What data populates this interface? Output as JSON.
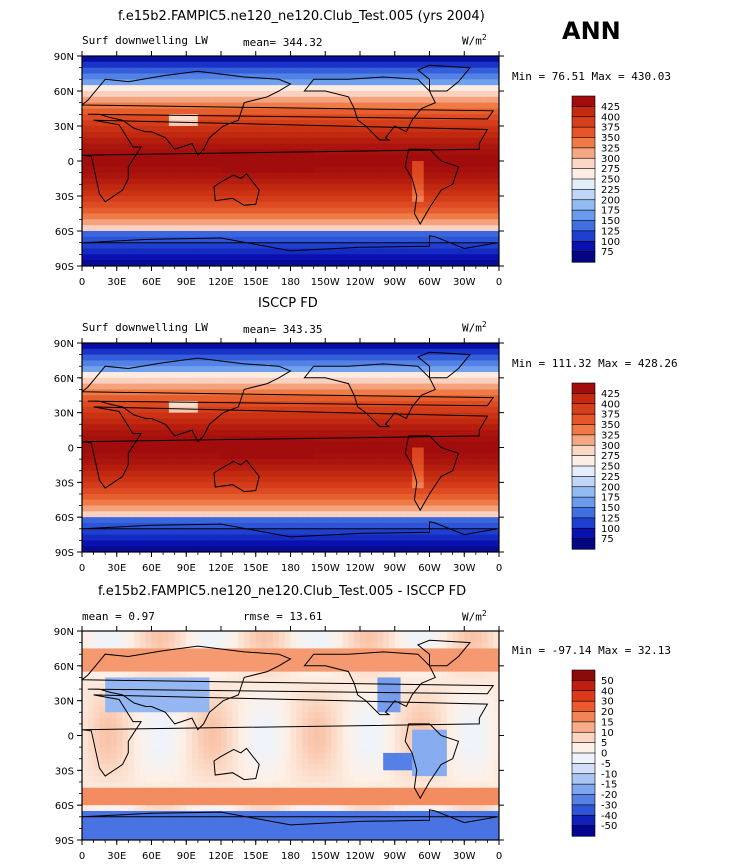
{
  "season": "ANN",
  "axes": {
    "lat_labels": [
      "90N",
      "60N",
      "30N",
      "0",
      "30S",
      "60S",
      "90S"
    ],
    "lon_labels": [
      "0",
      "30E",
      "60E",
      "90E",
      "120E",
      "150E",
      "180",
      "150W",
      "120W",
      "90W",
      "60W",
      "30W",
      "0"
    ]
  },
  "chart_data": [
    {
      "type": "heatmap",
      "title": "f.e15b2.FAMPIC5.ne120_ne120.Club_Test.005 (yrs 2004)",
      "left_label": "Surf downwelling LW",
      "center_label": "mean= 344.32",
      "units": "W/m2",
      "min_max": "Min =  76.51 Max = 430.03",
      "levels": [
        "425",
        "400",
        "375",
        "350",
        "325",
        "300",
        "275",
        "250",
        "225",
        "200",
        "175",
        "150",
        "125",
        "100",
        "75"
      ],
      "colors": [
        "#a10d0d",
        "#c42a10",
        "#d63f1c",
        "#e55527",
        "#ef7a45",
        "#f5a783",
        "#fbd7c6",
        "#fdeee4",
        "#e4eefb",
        "#c0d6f7",
        "#94baf2",
        "#6a9aec",
        "#3f6fe0",
        "#1f3fd0",
        "#0a10b0",
        "#040580"
      ]
    },
    {
      "type": "heatmap",
      "title": "ISCCP FD",
      "left_label": "Surf downwelling LW",
      "center_label": "mean= 343.35",
      "units": "W/m2",
      "min_max": "Min = 111.32 Max = 428.26",
      "levels": [
        "425",
        "400",
        "375",
        "350",
        "325",
        "300",
        "275",
        "250",
        "225",
        "200",
        "175",
        "150",
        "125",
        "100",
        "75"
      ],
      "colors": [
        "#a10d0d",
        "#c42a10",
        "#d63f1c",
        "#e55527",
        "#ef7a45",
        "#f5a783",
        "#fbd7c6",
        "#fdeee4",
        "#e4eefb",
        "#c0d6f7",
        "#94baf2",
        "#6a9aec",
        "#3f6fe0",
        "#1f3fd0",
        "#0a10b0",
        "#040580"
      ]
    },
    {
      "type": "heatmap",
      "title": "f.e15b2.FAMPIC5.ne120_ne120.Club_Test.005 - ISCCP FD",
      "left_label": "mean =   0.97",
      "center_label": "rmse =  13.61",
      "units": "W/m2",
      "min_max": "Min = -97.14 Max =  32.13",
      "levels": [
        "50",
        "40",
        "30",
        "20",
        "15",
        "10",
        "5",
        "0",
        "-5",
        "-10",
        "-15",
        "-20",
        "-30",
        "-40",
        "-50"
      ],
      "colors": [
        "#8b0a0a",
        "#c01e10",
        "#dc3a1a",
        "#ea5a2c",
        "#f28456",
        "#f7ad8a",
        "#fbd5c0",
        "#fdf0e6",
        "#eef3fc",
        "#d0e0f8",
        "#a8c5f3",
        "#7fa6ee",
        "#5580e6",
        "#2e55d8",
        "#1020b8",
        "#030590"
      ]
    }
  ]
}
